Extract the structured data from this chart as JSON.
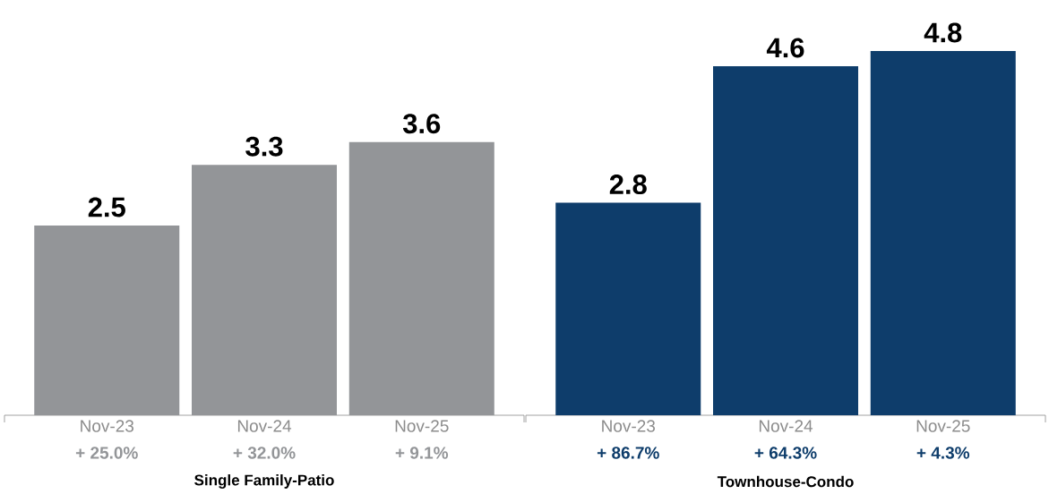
{
  "chart_data": [
    {
      "type": "bar",
      "categories": [
        "Nov-23",
        "Nov-24",
        "Nov-25"
      ],
      "values": [
        2.5,
        3.3,
        3.6
      ],
      "color": "#939598",
      "data_labels": true,
      "xlabel": "Single Family-Patio",
      "annotations": [
        "+ 25.0%",
        "+ 32.0%",
        "+ 9.1%"
      ]
    },
    {
      "type": "bar",
      "categories": [
        "Nov-23",
        "Nov-24",
        "Nov-25"
      ],
      "values": [
        2.8,
        4.6,
        4.8
      ],
      "color": "#0e3d6b",
      "data_labels": true,
      "xlabel": "Townhouse-Condo",
      "annotations": [
        "+ 86.7%",
        "+ 64.3%",
        "+ 4.3%"
      ]
    }
  ]
}
